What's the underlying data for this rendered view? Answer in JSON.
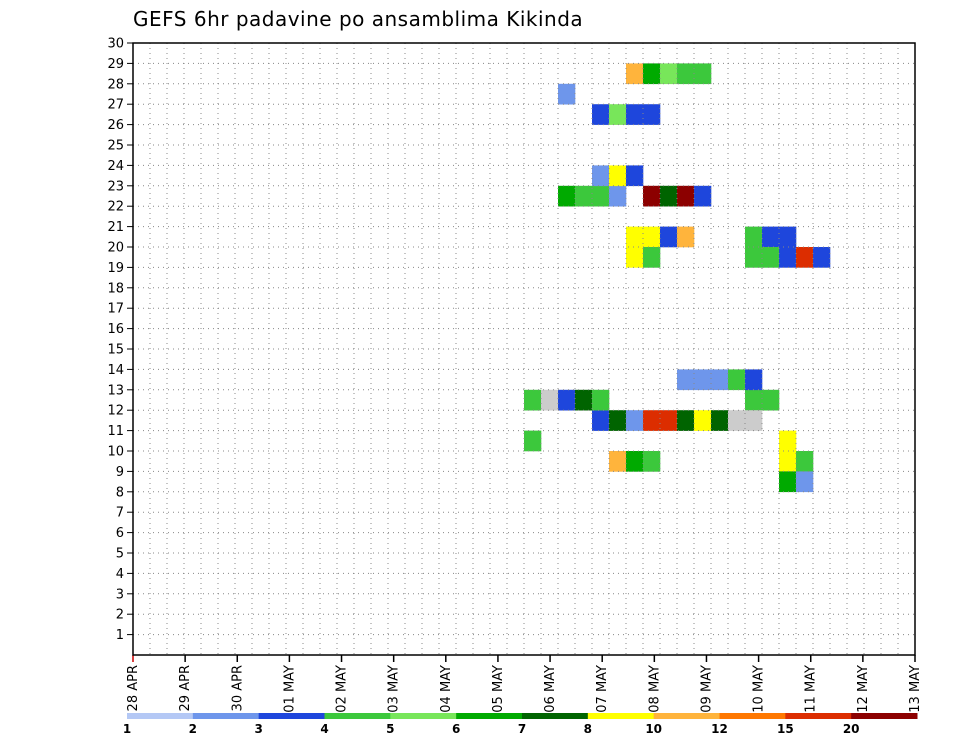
{
  "chart_data": {
    "type": "heatmap",
    "title": "GEFS 6hr padavine po ansamblima Kikinda",
    "x_tick_labels": [
      "28 APR",
      "29 APR",
      "30 APR",
      "01 MAY",
      "02 MAY",
      "03 MAY",
      "04 MAY",
      "05 MAY",
      "06 MAY",
      "07 MAY",
      "08 MAY",
      "09 MAY",
      "10 MAY",
      "11 MAY",
      "12 MAY",
      "13 MAY"
    ],
    "y_tick_labels": [
      "1",
      "2",
      "3",
      "4",
      "5",
      "6",
      "7",
      "8",
      "9",
      "10",
      "11",
      "12",
      "13",
      "14",
      "15",
      "16",
      "17",
      "18",
      "19",
      "20",
      "21",
      "22",
      "23",
      "24",
      "25",
      "26",
      "27",
      "28",
      "29",
      "30"
    ],
    "ylim": [
      0,
      30
    ],
    "grid": true,
    "legend": {
      "position": "bottom",
      "thresholds": [
        "1",
        "2",
        "3",
        "4",
        "5",
        "6",
        "7",
        "8",
        "10",
        "12",
        "15",
        "20"
      ],
      "colors": [
        "#b4c8f5",
        "#6e96eb",
        "#1e46dc",
        "#3cc83c",
        "#78e65a",
        "#00aa00",
        "#006400",
        "#ffff00",
        "#ffb43c",
        "#ff7800",
        "#dc2d00",
        "#8c0000"
      ]
    },
    "cells": [
      [
        29,
        29,
        8
      ],
      [
        30,
        29,
        5
      ],
      [
        31,
        29,
        4
      ],
      [
        32,
        29,
        3
      ],
      [
        33,
        29,
        3
      ],
      [
        27,
        27,
        2
      ],
      [
        28,
        27,
        4
      ],
      [
        29,
        27,
        2
      ],
      [
        30,
        27,
        2
      ],
      [
        25,
        28,
        1
      ],
      [
        25,
        23,
        5
      ],
      [
        26,
        23,
        3
      ],
      [
        27,
        23,
        3
      ],
      [
        28,
        23,
        1
      ],
      [
        30,
        23,
        11
      ],
      [
        31,
        23,
        6
      ],
      [
        32,
        23,
        11
      ],
      [
        33,
        23,
        2
      ],
      [
        29,
        21,
        7
      ],
      [
        30,
        21,
        7
      ],
      [
        31,
        21,
        2
      ],
      [
        32,
        21,
        8
      ],
      [
        29,
        20,
        7
      ],
      [
        30,
        20,
        3
      ],
      [
        27,
        24,
        1
      ],
      [
        28,
        24,
        7
      ],
      [
        29,
        24,
        2
      ],
      [
        36,
        21,
        3
      ],
      [
        37,
        21,
        2
      ],
      [
        38,
        21,
        2
      ],
      [
        36,
        20,
        3
      ],
      [
        37,
        20,
        3
      ],
      [
        38,
        20,
        2
      ],
      [
        39,
        20,
        10
      ],
      [
        40,
        20,
        2
      ],
      [
        36,
        13,
        3
      ],
      [
        37,
        13,
        3
      ],
      [
        27,
        12,
        2
      ],
      [
        28,
        12,
        6
      ],
      [
        29,
        12,
        1
      ],
      [
        30,
        12,
        10
      ],
      [
        31,
        12,
        10
      ],
      [
        32,
        12,
        6
      ],
      [
        33,
        12,
        7
      ],
      [
        34,
        12,
        6
      ],
      [
        35,
        12,
        12
      ],
      [
        36,
        12,
        12
      ],
      [
        23,
        13,
        3
      ],
      [
        24,
        13,
        12
      ],
      [
        25,
        13,
        2
      ],
      [
        26,
        13,
        6
      ],
      [
        27,
        13,
        3
      ],
      [
        32,
        14,
        1
      ],
      [
        33,
        14,
        1
      ],
      [
        34,
        14,
        1
      ],
      [
        35,
        14,
        3
      ],
      [
        36,
        14,
        2
      ],
      [
        28,
        10,
        8
      ],
      [
        29,
        10,
        5
      ],
      [
        30,
        10,
        3
      ],
      [
        38,
        10,
        7
      ],
      [
        39,
        10,
        3
      ],
      [
        38,
        9,
        5
      ],
      [
        39,
        9,
        1
      ],
      [
        23,
        11,
        3
      ],
      [
        38,
        11,
        7
      ]
    ]
  }
}
